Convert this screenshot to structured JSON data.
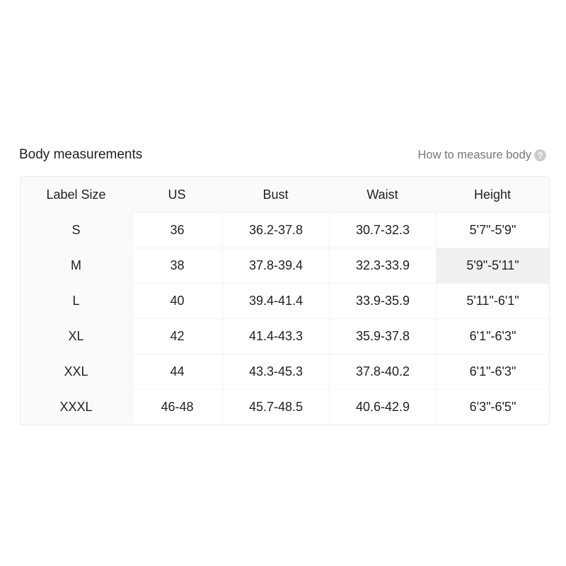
{
  "title": "Body measurements",
  "help_link": "How to measure body",
  "help_icon": "question-circle-icon",
  "columns": [
    "Label Size",
    "US",
    "Bust",
    "Waist",
    "Height"
  ],
  "rows": [
    [
      "S",
      "36",
      "36.2-37.8",
      "30.7-32.3",
      "5'7\"-5'9\""
    ],
    [
      "M",
      "38",
      "37.8-39.4",
      "32.3-33.9",
      "5'9\"-5'11\""
    ],
    [
      "L",
      "40",
      "39.4-41.4",
      "33.9-35.9",
      "5'11\"-6'1\""
    ],
    [
      "XL",
      "42",
      "41.4-43.3",
      "35.9-37.8",
      "6'1\"-6'3\""
    ],
    [
      "XXL",
      "44",
      "43.3-45.3",
      "37.8-40.2",
      "6'1\"-6'3\""
    ],
    [
      "XXXL",
      "46-48",
      "45.7-48.5",
      "40.6-42.9",
      "6'3\"-6'5\""
    ]
  ],
  "highlighted_cell": {
    "row": 1,
    "col": 4
  }
}
